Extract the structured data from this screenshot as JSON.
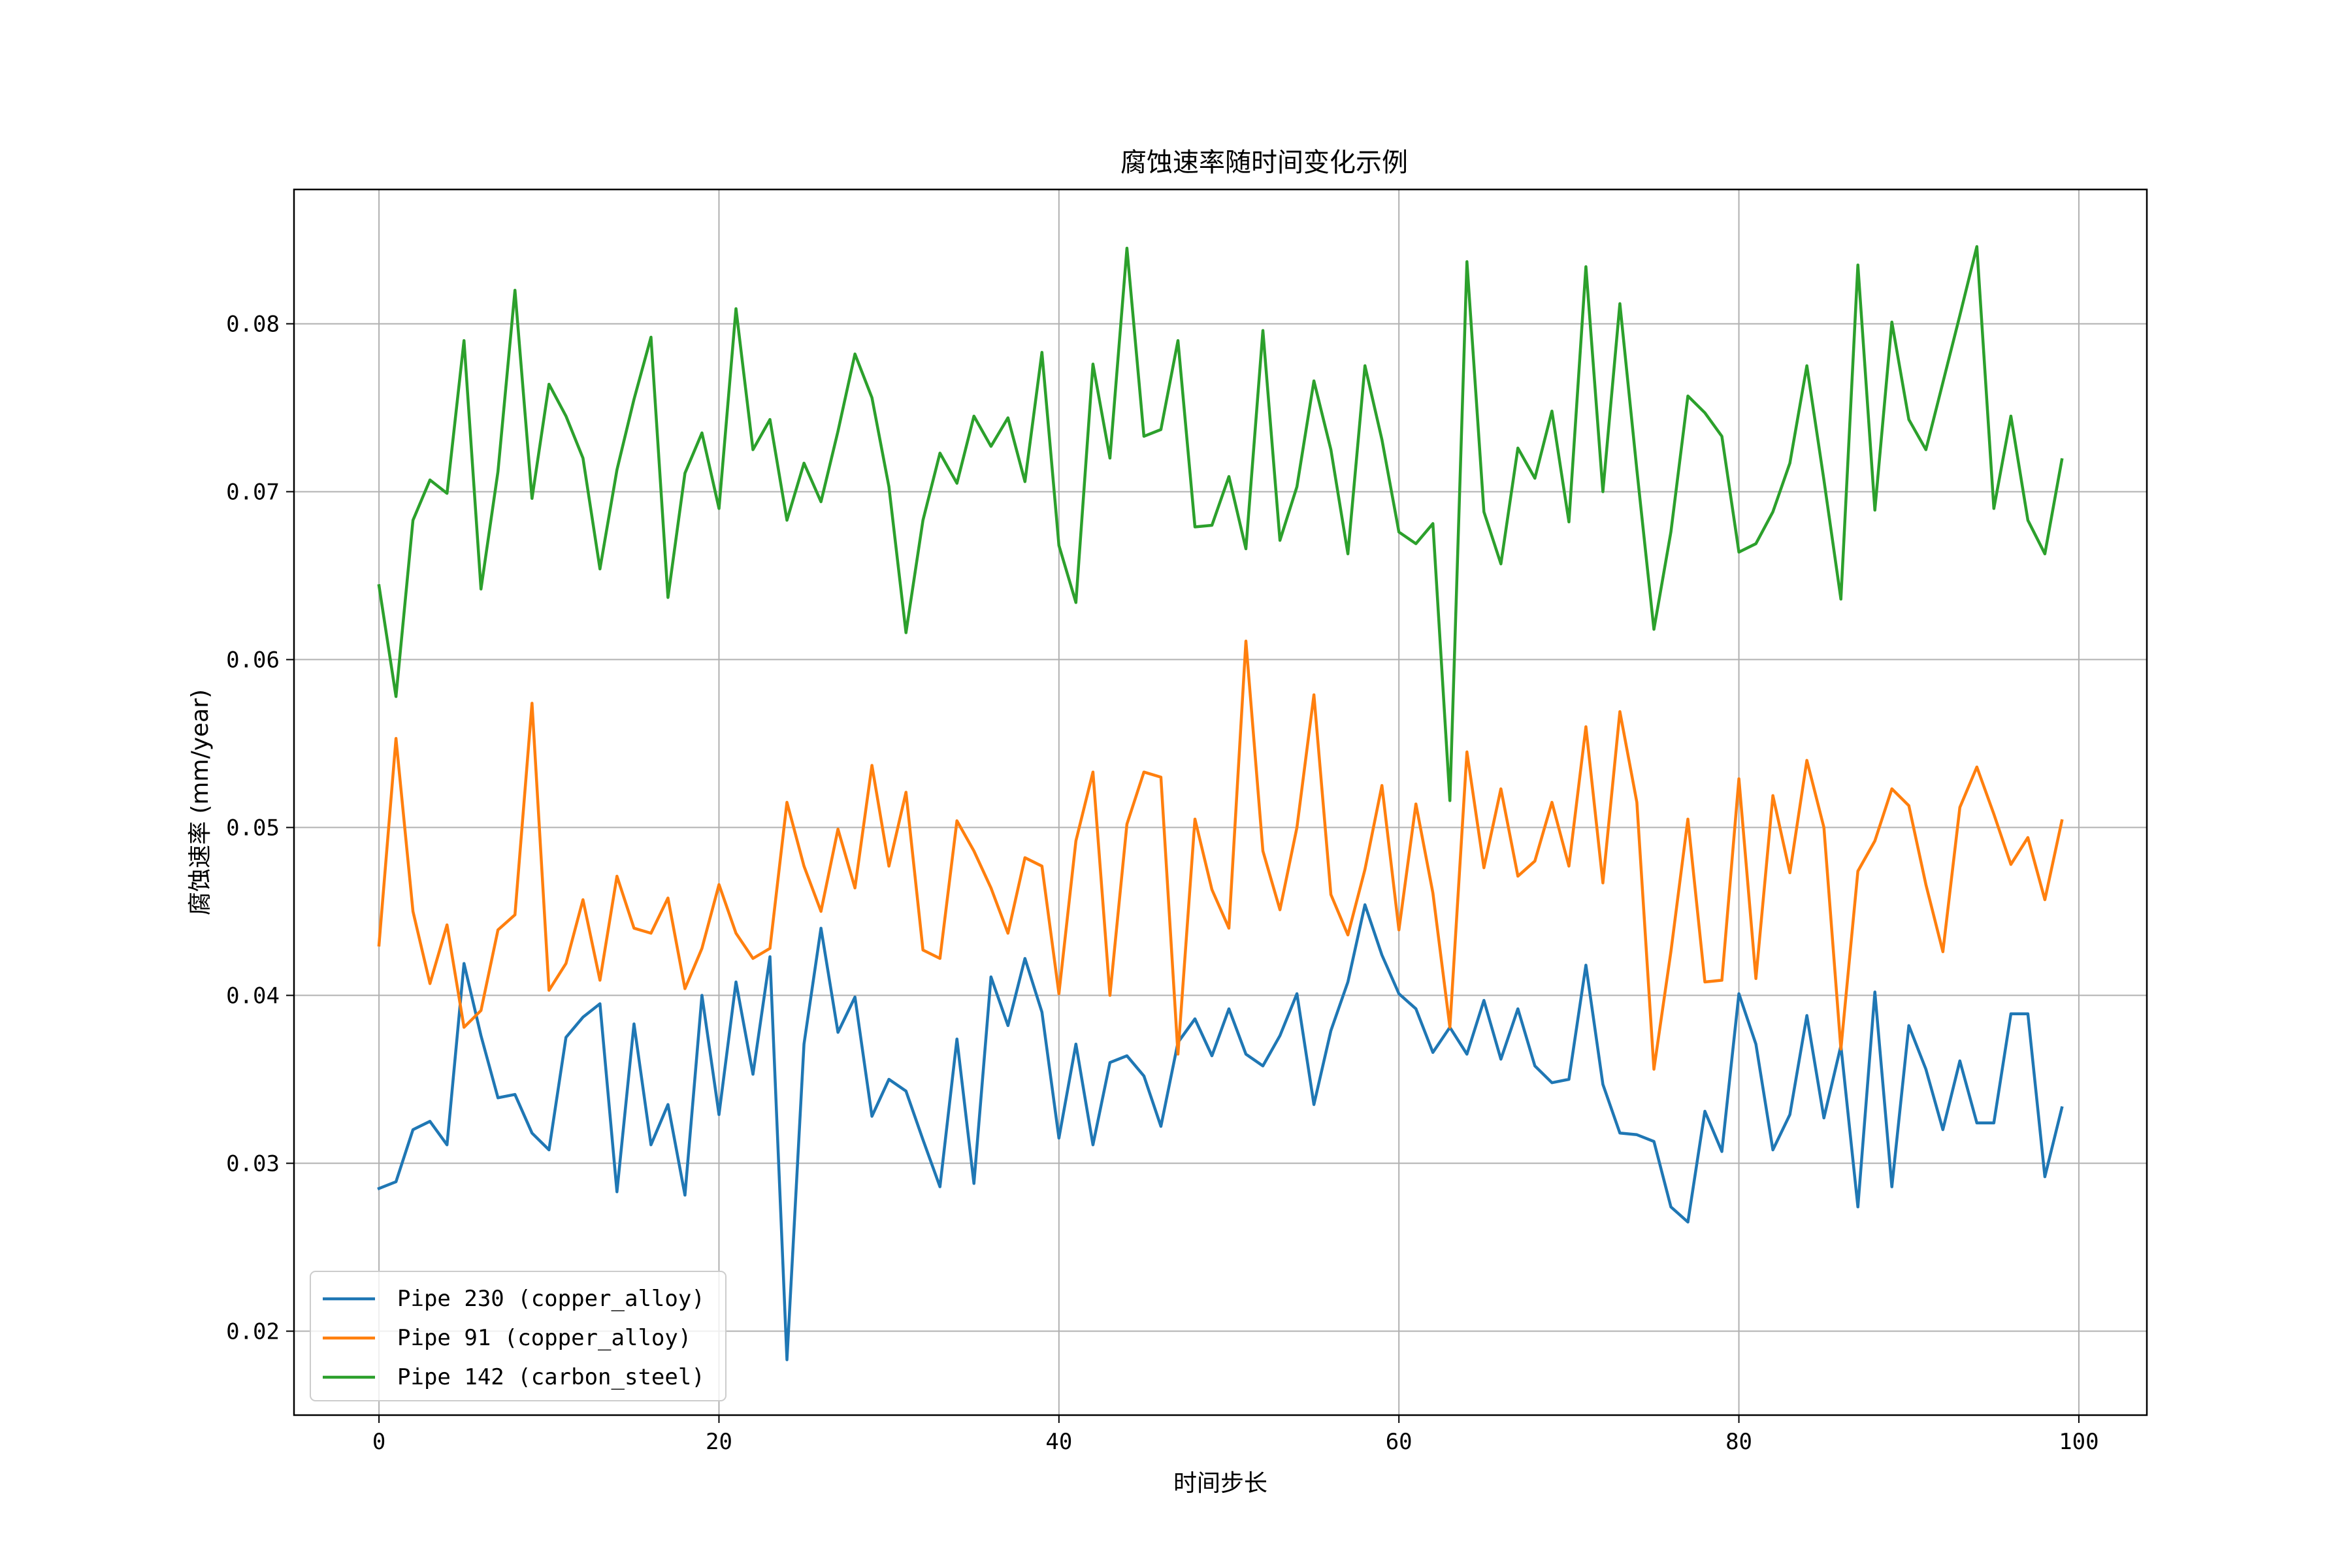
{
  "chart_data": {
    "type": "line",
    "title": "腐蚀速率随时间变化示例",
    "xlabel": "时间步长",
    "ylabel": "腐蚀速率 (mm/year)",
    "xlim": [
      -5,
      104
    ],
    "ylim": [
      0.015,
      0.088
    ],
    "xticks": [
      0,
      20,
      40,
      60,
      80,
      100
    ],
    "yticks": [
      0.02,
      0.03,
      0.04,
      0.05,
      0.06,
      0.07,
      0.08
    ],
    "xtick_labels": [
      "0",
      "20",
      "40",
      "60",
      "80",
      "100"
    ],
    "ytick_labels": [
      "0.02",
      "0.03",
      "0.04",
      "0.05",
      "0.06",
      "0.07",
      "0.08"
    ],
    "grid": true,
    "legend_position": "lower-left",
    "x": [
      0,
      1,
      2,
      3,
      4,
      5,
      6,
      7,
      8,
      9,
      10,
      11,
      12,
      13,
      14,
      15,
      16,
      17,
      18,
      19,
      20,
      21,
      22,
      23,
      24,
      25,
      26,
      27,
      28,
      29,
      30,
      31,
      32,
      33,
      34,
      35,
      36,
      37,
      38,
      39,
      40,
      41,
      42,
      43,
      44,
      45,
      46,
      47,
      48,
      49,
      50,
      51,
      52,
      53,
      54,
      55,
      56,
      57,
      58,
      59,
      60,
      61,
      62,
      63,
      64,
      65,
      66,
      67,
      68,
      69,
      70,
      71,
      72,
      73,
      74,
      75,
      76,
      77,
      78,
      79,
      80,
      81,
      82,
      83,
      84,
      85,
      86,
      87,
      88,
      89,
      90,
      91,
      92,
      93,
      94,
      95,
      96,
      97,
      98,
      99
    ],
    "series": [
      {
        "name": "Pipe 230 (copper_alloy)",
        "color": "#1f77b4",
        "values": [
          0.0285,
          0.0289,
          0.032,
          0.0325,
          0.0311,
          0.0419,
          0.0376,
          0.0339,
          0.0341,
          0.0318,
          0.0308,
          0.0375,
          0.0387,
          0.0395,
          0.0283,
          0.0383,
          0.0311,
          0.0335,
          0.0281,
          0.04,
          0.0329,
          0.0408,
          0.0353,
          0.0423,
          0.0183,
          0.0371,
          0.044,
          0.0378,
          0.0399,
          0.0328,
          0.035,
          0.0343,
          0.0314,
          0.0286,
          0.0374,
          0.0288,
          0.0411,
          0.0382,
          0.0422,
          0.039,
          0.0315,
          0.0371,
          0.0311,
          0.036,
          0.0364,
          0.0352,
          0.0322,
          0.0372,
          0.0386,
          0.0364,
          0.0392,
          0.0365,
          0.0358,
          0.0376,
          0.0401,
          0.0335,
          0.0379,
          0.0408,
          0.0454,
          0.0424,
          0.0401,
          0.0392,
          0.0366,
          0.0381,
          0.0365,
          0.0397,
          0.0362,
          0.0392,
          0.0358,
          0.0348,
          0.035,
          0.0418,
          0.0347,
          0.0318,
          0.0317,
          0.0313,
          0.0274,
          0.0265,
          0.0331,
          0.0307,
          0.0401,
          0.0371,
          0.0308,
          0.0329,
          0.0388,
          0.0327,
          0.037,
          0.0274,
          0.0402,
          0.0286,
          0.0382,
          0.0356,
          0.032,
          0.0361,
          0.0324,
          0.0324,
          0.0389,
          0.0389,
          0.0292,
          0.0333
        ]
      },
      {
        "name": "Pipe 91 (copper_alloy)",
        "color": "#ff7f0e",
        "values": [
          0.043,
          0.0553,
          0.045,
          0.0407,
          0.0442,
          0.0381,
          0.0391,
          0.0439,
          0.0448,
          0.0574,
          0.0403,
          0.0419,
          0.0457,
          0.0409,
          0.0471,
          0.044,
          0.0437,
          0.0458,
          0.0404,
          0.0428,
          0.0466,
          0.0437,
          0.0422,
          0.0428,
          0.0515,
          0.0477,
          0.045,
          0.0499,
          0.0464,
          0.0537,
          0.0477,
          0.0521,
          0.0427,
          0.0422,
          0.0504,
          0.0486,
          0.0464,
          0.0437,
          0.0482,
          0.0477,
          0.0401,
          0.0492,
          0.0533,
          0.04,
          0.0502,
          0.0533,
          0.053,
          0.0365,
          0.0505,
          0.0463,
          0.044,
          0.0611,
          0.0486,
          0.0451,
          0.05,
          0.0579,
          0.046,
          0.0436,
          0.0475,
          0.0525,
          0.0439,
          0.0514,
          0.0461,
          0.0381,
          0.0545,
          0.0476,
          0.0523,
          0.0471,
          0.048,
          0.0515,
          0.0477,
          0.056,
          0.0467,
          0.0569,
          0.0515,
          0.0356,
          0.0426,
          0.0505,
          0.0408,
          0.0409,
          0.0529,
          0.041,
          0.0519,
          0.0473,
          0.054,
          0.05,
          0.0368,
          0.0474,
          0.0492,
          0.0523,
          0.0513,
          0.0466,
          0.0426,
          0.0512,
          0.0536,
          0.0508,
          0.0478,
          0.0494,
          0.0457,
          0.0504
        ]
      },
      {
        "name": "Pipe 142 (carbon_steel)",
        "color": "#2ca02c",
        "values": [
          0.0644,
          0.0578,
          0.0683,
          0.0707,
          0.0699,
          0.079,
          0.0642,
          0.0712,
          0.082,
          0.0696,
          0.0764,
          0.0745,
          0.072,
          0.0654,
          0.0713,
          0.0755,
          0.0792,
          0.0637,
          0.0711,
          0.0735,
          0.069,
          0.0809,
          0.0725,
          0.0743,
          0.0683,
          0.0717,
          0.0694,
          0.0736,
          0.0782,
          0.0756,
          0.0703,
          0.0616,
          0.0683,
          0.0723,
          0.0705,
          0.0745,
          0.0727,
          0.0744,
          0.0706,
          0.0783,
          0.0668,
          0.0634,
          0.0776,
          0.072,
          0.0845,
          0.0733,
          0.0737,
          0.079,
          0.0679,
          0.068,
          0.0709,
          0.0666,
          0.0796,
          0.0671,
          0.0703,
          0.0766,
          0.0725,
          0.0663,
          0.0775,
          0.0731,
          0.0676,
          0.0669,
          0.0681,
          0.0516,
          0.0837,
          0.0688,
          0.0657,
          0.0726,
          0.0708,
          0.0748,
          0.0682,
          0.0834,
          0.07,
          0.0812,
          0.0713,
          0.0618,
          0.0676,
          0.0757,
          0.0747,
          0.0733,
          0.0664,
          0.0669,
          0.0688,
          0.0717,
          0.0775,
          0.0707,
          0.0636,
          0.0835,
          0.0689,
          0.0801,
          0.0743,
          0.0725,
          0.0765,
          0.0805,
          0.0846,
          0.069,
          0.0745,
          0.0683,
          0.0663,
          0.0719
        ]
      }
    ]
  }
}
